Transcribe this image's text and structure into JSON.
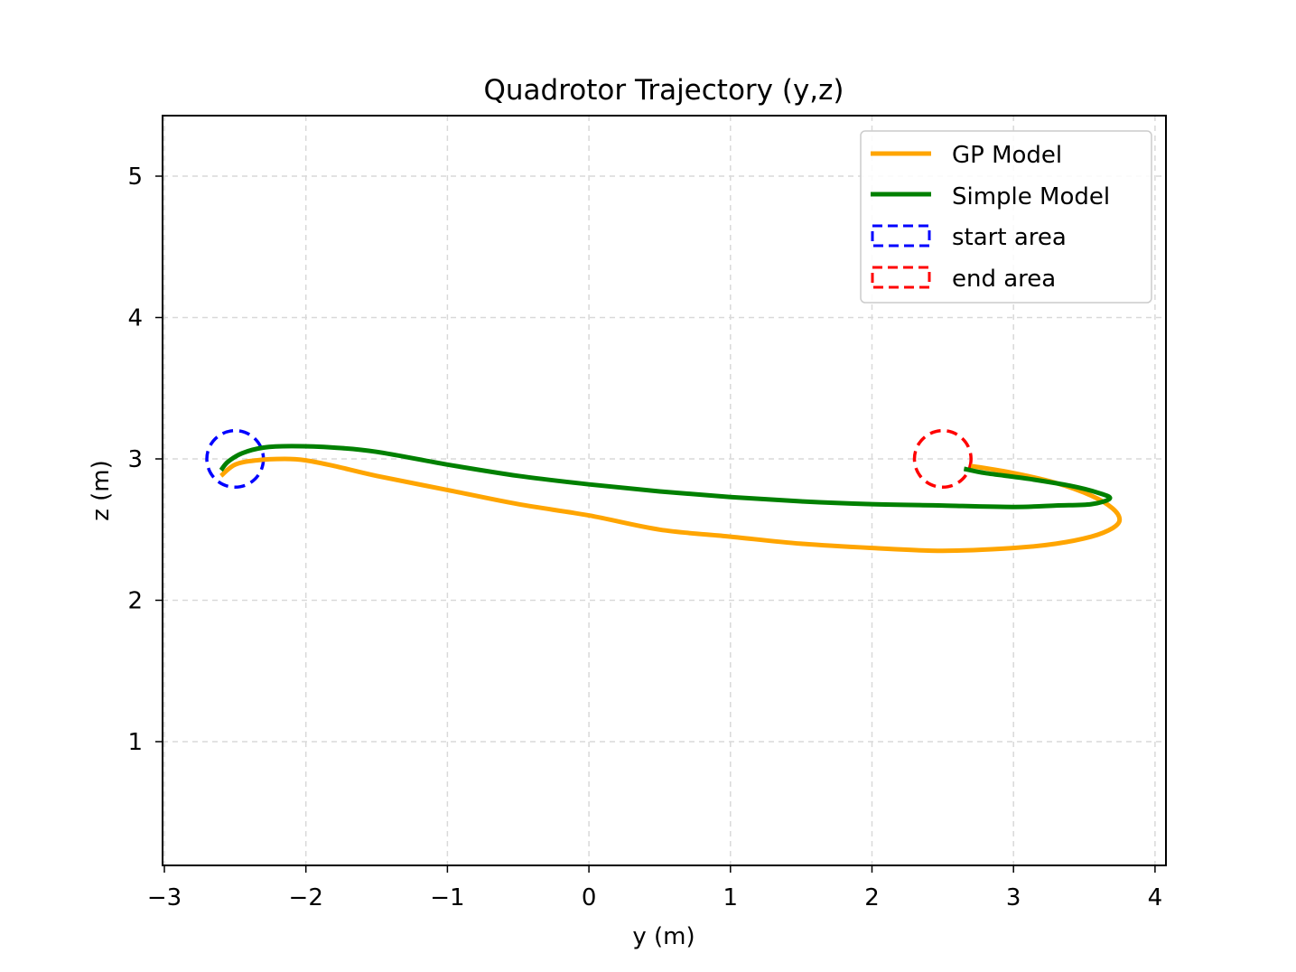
{
  "chart_data": {
    "type": "line",
    "title": "Quadrotor Trajectory (y,z)",
    "xlabel": "y (m)",
    "ylabel": "z (m)",
    "xlim": [
      -3,
      4
    ],
    "ylim": [
      0.1,
      5.4
    ],
    "xticks": [
      -3,
      -2,
      -1,
      0,
      1,
      2,
      3,
      4
    ],
    "yticks": [
      1,
      2,
      3,
      4,
      5
    ],
    "xtick_labels": [
      "−3",
      "−2",
      "−1",
      "0",
      "1",
      "2",
      "3",
      "4"
    ],
    "ytick_labels": [
      "1",
      "2",
      "3",
      "4",
      "5"
    ],
    "grid": true,
    "legend_placement": "top-right",
    "series": [
      {
        "name": "GP Model",
        "color": "#FFA500",
        "x": [
          -2.6,
          -2.5,
          -2.35,
          -2.15,
          -2.0,
          -1.8,
          -1.5,
          -1.0,
          -0.5,
          0.0,
          0.5,
          1.0,
          1.5,
          2.0,
          2.5,
          3.0,
          3.3,
          3.55,
          3.7,
          3.75,
          3.7,
          3.55,
          3.3,
          3.0,
          2.7
        ],
        "y": [
          2.88,
          2.96,
          2.99,
          3.0,
          2.99,
          2.95,
          2.88,
          2.78,
          2.68,
          2.6,
          2.5,
          2.45,
          2.4,
          2.37,
          2.35,
          2.37,
          2.4,
          2.45,
          2.51,
          2.57,
          2.65,
          2.74,
          2.83,
          2.9,
          2.95
        ]
      },
      {
        "name": "Simple Model",
        "color": "#008000",
        "x": [
          -2.6,
          -2.55,
          -2.45,
          -2.3,
          -2.1,
          -1.8,
          -1.5,
          -1.0,
          -0.5,
          0.0,
          0.5,
          1.0,
          1.5,
          2.0,
          2.5,
          3.0,
          3.3,
          3.55,
          3.68,
          3.6,
          3.4,
          3.1,
          2.8,
          2.65
        ],
        "y": [
          2.92,
          2.98,
          3.04,
          3.08,
          3.09,
          3.08,
          3.05,
          2.96,
          2.88,
          2.82,
          2.77,
          2.73,
          2.7,
          2.68,
          2.67,
          2.66,
          2.67,
          2.68,
          2.72,
          2.76,
          2.81,
          2.86,
          2.9,
          2.93
        ]
      }
    ],
    "areas": [
      {
        "name": "start area",
        "color": "#0000FF",
        "center": [
          -2.5,
          3.0
        ],
        "radius": 0.2,
        "style": "dashed"
      },
      {
        "name": "end area",
        "color": "#FF0000",
        "center": [
          2.5,
          3.0
        ],
        "radius": 0.2,
        "style": "dashed"
      }
    ]
  }
}
